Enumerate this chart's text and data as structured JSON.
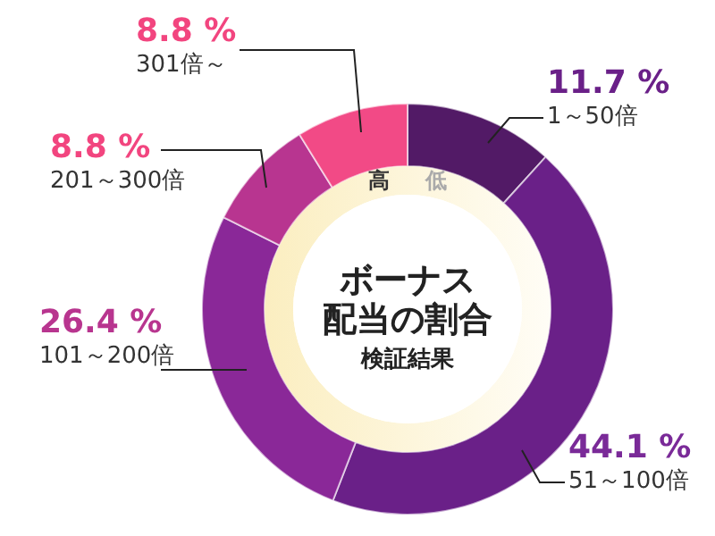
{
  "chart_data": {
    "type": "donut",
    "title": "ボーナス",
    "subtitle": "配当の割合",
    "categories": [
      "1～50倍",
      "51～100倍",
      "101～200倍",
      "201～300倍",
      "301倍～"
    ],
    "values": [
      11.7,
      44.1,
      26.4,
      8.8,
      8.8
    ],
    "colors": [
      "#521a66",
      "#6a2088",
      "#8a2898",
      "#b83590",
      "#f24a86"
    ],
    "value_labels": [
      "11.7 %",
      "44.1 %",
      "26.4 %",
      "8.8 %",
      "8.8 %"
    ],
    "annotations": [
      "低",
      "高",
      "検証結果"
    ]
  }
}
